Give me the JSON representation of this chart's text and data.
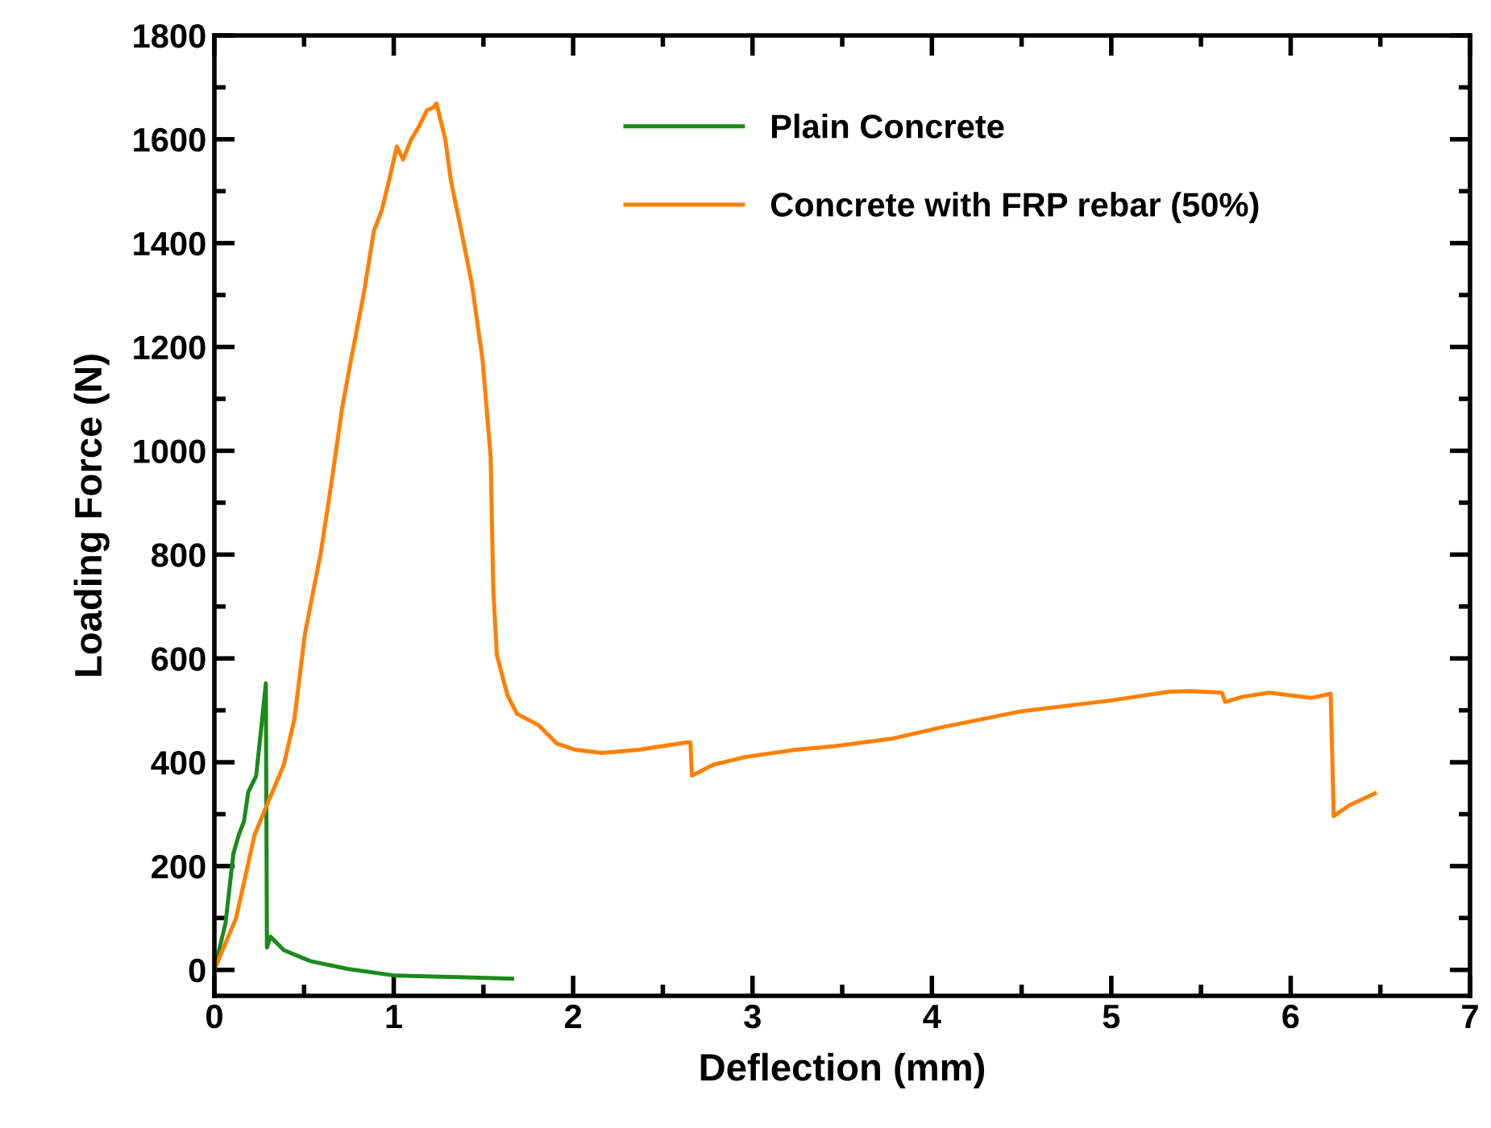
{
  "chart_data": {
    "type": "line",
    "xlabel": "Deflection (mm)",
    "ylabel": "Loading Force (N)",
    "xlim": [
      0,
      7
    ],
    "xticks": [
      0,
      1,
      2,
      3,
      4,
      5,
      6,
      7
    ],
    "ylim": [
      -50,
      1800
    ],
    "yticks": [
      0,
      200,
      400,
      600,
      800,
      1000,
      1200,
      1400,
      1600,
      1800
    ],
    "grid": false,
    "legend": "top",
    "marker": "none",
    "line_style": "solid",
    "series": [
      {
        "name": "Plain Concrete",
        "color": "#1a8a1a",
        "x": [
          0,
          0.062,
          0.106,
          0.136,
          0.165,
          0.189,
          0.233,
          0.263,
          0.287,
          0.293,
          0.313,
          0.387,
          0.535,
          0.742,
          1.008,
          1.36,
          1.66
        ],
        "values": [
          0,
          90,
          224,
          260,
          286,
          343,
          374,
          472,
          552,
          43,
          64,
          38,
          17,
          2,
          -11,
          -14,
          -17
        ]
      },
      {
        "name": "Concrete with FRP rebar (50%)",
        "color": "#ff8000",
        "x": [
          0,
          0.121,
          0.224,
          0.298,
          0.387,
          0.446,
          0.505,
          0.593,
          0.652,
          0.712,
          0.756,
          0.831,
          0.889,
          0.934,
          0.978,
          1.017,
          1.052,
          1.096,
          1.141,
          1.185,
          1.22,
          1.238,
          1.288,
          1.318,
          1.377,
          1.436,
          1.495,
          1.54,
          1.555,
          1.575,
          1.634,
          1.687,
          1.806,
          1.909,
          2.012,
          2.16,
          2.367,
          2.633,
          2.654,
          2.662,
          2.78,
          2.958,
          3.239,
          3.46,
          3.786,
          4.05,
          4.495,
          4.997,
          5.322,
          5.44,
          5.617,
          5.635,
          5.73,
          5.88,
          6.118,
          6.223,
          6.24,
          6.327,
          6.469
        ],
        "values": [
          0,
          100,
          260,
          322,
          395,
          483,
          648,
          803,
          937,
          1082,
          1165,
          1299,
          1423,
          1464,
          1527,
          1586,
          1561,
          1599,
          1625,
          1656,
          1661,
          1669,
          1599,
          1521,
          1423,
          1320,
          1175,
          989,
          730,
          606,
          529,
          493,
          472,
          436,
          424,
          418,
          424,
          438,
          438,
          374,
          395,
          410,
          424,
          431,
          446,
          467,
          498,
          519,
          536,
          537,
          534,
          516,
          526,
          534,
          524,
          532,
          296,
          317,
          340
        ]
      }
    ]
  }
}
